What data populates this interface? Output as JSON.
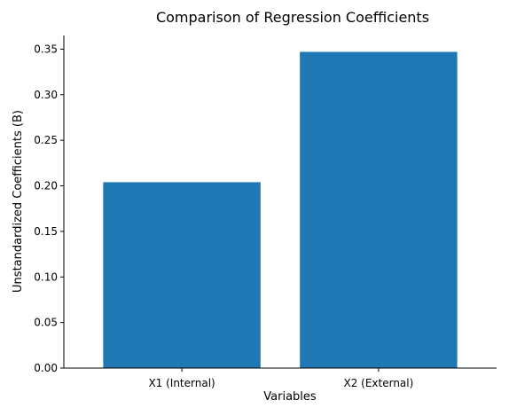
{
  "chart_data": {
    "type": "bar",
    "title": "Comparison of Regression Coefficients",
    "xlabel": "Variables",
    "ylabel": "Unstandardized Coefficients (B)",
    "categories": [
      "X1 (Internal)",
      "X2 (External)"
    ],
    "values": [
      0.204,
      0.347
    ],
    "ylim": [
      0,
      0.365
    ],
    "yticks": [
      0.0,
      0.05,
      0.1,
      0.15,
      0.2,
      0.25,
      0.3,
      0.35
    ],
    "ytick_labels": [
      "0.00",
      "0.05",
      "0.10",
      "0.15",
      "0.20",
      "0.25",
      "0.30",
      "0.35"
    ],
    "grid": false,
    "legend": false,
    "colors": {
      "bar": "#1f77b4",
      "axis": "#000000",
      "background": "#ffffff"
    }
  }
}
